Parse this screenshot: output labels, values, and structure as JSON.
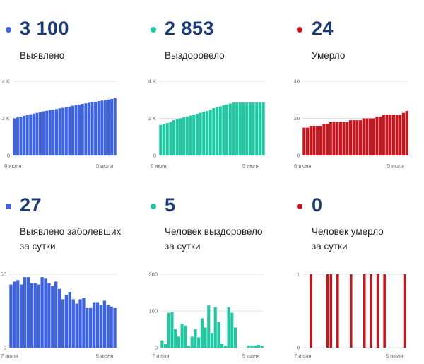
{
  "colors": {
    "blue": "#3c62e6",
    "teal": "#1dc8a2",
    "red": "#c8161e",
    "number": "#1a3a7a"
  },
  "panels": [
    {
      "id": "p0",
      "number": "3 100",
      "label_lines": [
        "Выявлено"
      ],
      "color": "#3c62e6"
    },
    {
      "id": "p1",
      "number": "2 853",
      "label_lines": [
        "Выздоровело"
      ],
      "color": "#1dc8a2"
    },
    {
      "id": "p2",
      "number": "24",
      "label_lines": [
        "Умерло"
      ],
      "color": "#c8161e"
    },
    {
      "id": "p3",
      "number": "27",
      "label_lines": [
        "Выявлено заболевших",
        "за сутки"
      ],
      "color": "#3c62e6"
    },
    {
      "id": "p4",
      "number": "5",
      "label_lines": [
        "Человек выздоровело",
        "за сутки"
      ],
      "color": "#1dc8a2"
    },
    {
      "id": "p5",
      "number": "0",
      "label_lines": [
        "Человек умерло",
        "за сутки"
      ],
      "color": "#c8161e"
    }
  ],
  "chart_data": [
    {
      "type": "bar",
      "title": "Выявлено",
      "color": "#3c62e6",
      "x_start_label": "6 июня",
      "x_end_label": "5 июля",
      "ylim": [
        0,
        4000
      ],
      "y_ticks": [
        {
          "v": 0,
          "label": "0"
        },
        {
          "v": 2000,
          "label": "2 K"
        },
        {
          "v": 4000,
          "label": "4 K"
        }
      ],
      "values": [
        2000,
        2050,
        2100,
        2140,
        2180,
        2220,
        2260,
        2300,
        2340,
        2380,
        2410,
        2440,
        2470,
        2500,
        2540,
        2570,
        2600,
        2640,
        2680,
        2720,
        2750,
        2780,
        2810,
        2840,
        2870,
        2900,
        2930,
        2960,
        2990,
        3020,
        3050,
        3100
      ]
    },
    {
      "type": "bar",
      "title": "Выздоровело",
      "color": "#1dc8a2",
      "x_start_label": "6 июня",
      "x_end_label": "5 июля",
      "ylim": [
        0,
        4000
      ],
      "y_ticks": [
        {
          "v": 0,
          "label": "0"
        },
        {
          "v": 2000,
          "label": "2 K"
        },
        {
          "v": 4000,
          "label": "4 K"
        }
      ],
      "values": [
        1650,
        1680,
        1750,
        1800,
        1900,
        1950,
        2000,
        2050,
        2100,
        2150,
        2200,
        2250,
        2300,
        2350,
        2400,
        2450,
        2550,
        2600,
        2650,
        2700,
        2750,
        2800,
        2850,
        2853,
        2853,
        2853,
        2853,
        2853,
        2853,
        2853,
        2853,
        2853
      ]
    },
    {
      "type": "bar",
      "title": "Умерло",
      "color": "#c8161e",
      "x_start_label": "6 июня",
      "x_end_label": "5 июля",
      "ylim": [
        0,
        40
      ],
      "y_ticks": [
        {
          "v": 0,
          "label": "0"
        },
        {
          "v": 20,
          "label": "20"
        },
        {
          "v": 40,
          "label": "40"
        }
      ],
      "values": [
        15,
        15,
        16,
        16,
        16,
        16,
        17,
        17,
        18,
        18,
        18,
        18,
        18,
        18,
        19,
        19,
        19,
        19,
        20,
        20,
        20,
        20,
        21,
        21,
        22,
        22,
        22,
        22,
        22,
        22,
        23,
        24
      ]
    },
    {
      "type": "bar",
      "title": "Выявлено заболевших за сутки",
      "color": "#3c62e6",
      "x_start_label": "7 июня",
      "x_end_label": "5 июля",
      "ylim": [
        0,
        50
      ],
      "y_ticks": [
        {
          "v": 0,
          "label": "0"
        },
        {
          "v": 50,
          "label": "50"
        }
      ],
      "values": [
        43,
        45,
        46,
        43,
        48,
        48,
        44,
        44,
        43,
        48,
        47,
        44,
        42,
        45,
        40,
        33,
        36,
        38,
        33,
        30,
        33,
        34,
        27,
        27,
        31,
        31,
        29,
        32,
        29,
        28,
        27
      ]
    },
    {
      "type": "bar",
      "title": "Человек выздоровело за сутки",
      "color": "#1dc8a2",
      "x_start_label": "7 июня",
      "x_end_label": "5 июля",
      "ylim": [
        0,
        200
      ],
      "y_ticks": [
        {
          "v": 0,
          "label": "0"
        },
        {
          "v": 100,
          "label": "100"
        },
        {
          "v": 200,
          "label": "200"
        }
      ],
      "values": [
        20,
        10,
        95,
        97,
        50,
        30,
        65,
        60,
        5,
        30,
        50,
        28,
        80,
        55,
        115,
        40,
        110,
        70,
        10,
        5,
        110,
        95,
        55,
        0,
        0,
        0,
        6,
        6,
        6,
        8,
        5
      ]
    },
    {
      "type": "bar",
      "title": "Человек умерло за сутки",
      "color": "#c8161e",
      "x_start_label": "7 июня",
      "x_end_label": "5 июля",
      "ylim": [
        0,
        1
      ],
      "y_ticks": [
        {
          "v": 0,
          "label": "0"
        },
        {
          "v": 1,
          "label": "1"
        }
      ],
      "values": [
        0,
        0,
        1,
        0,
        0,
        0,
        0,
        1,
        1,
        0,
        1,
        0,
        0,
        0,
        1,
        0,
        0,
        0,
        1,
        0,
        1,
        0,
        1,
        0,
        1,
        0,
        0,
        0,
        0,
        0,
        1
      ]
    }
  ]
}
